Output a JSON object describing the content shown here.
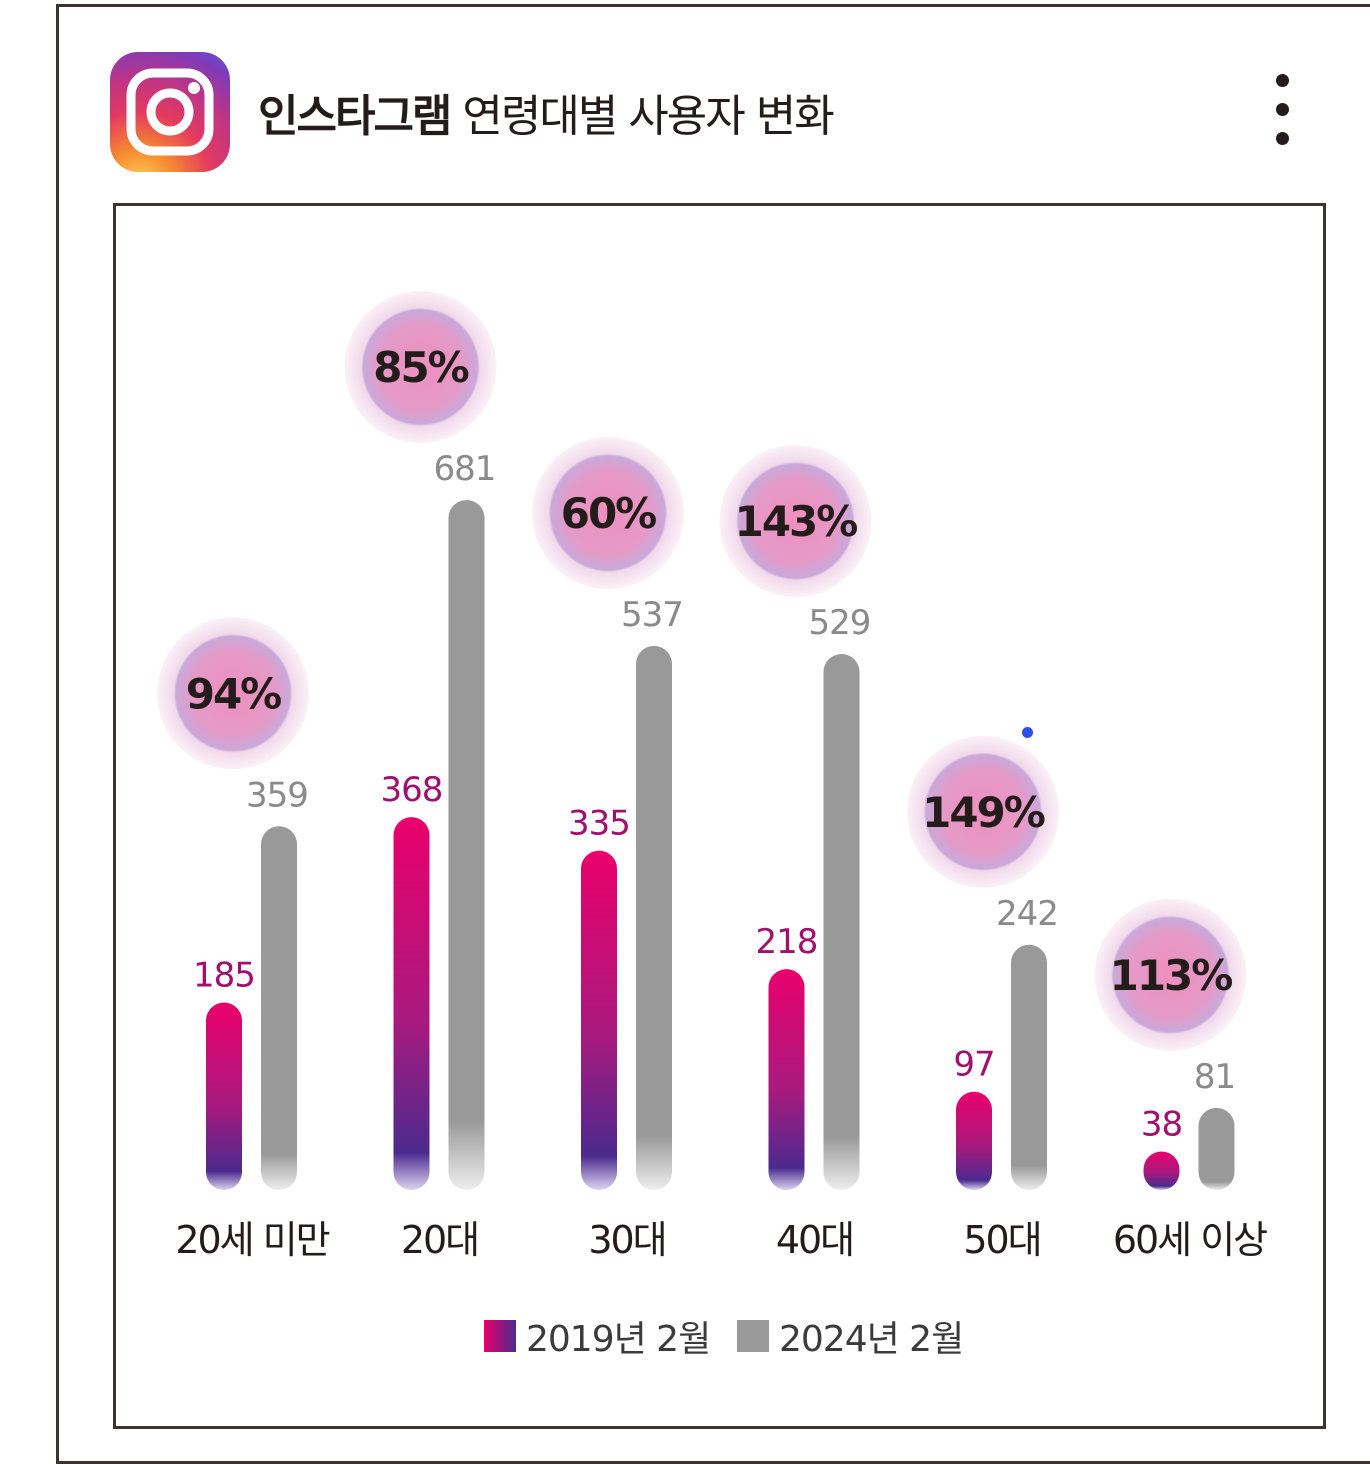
{
  "header": {
    "title_bold": "인스타그램",
    "title_rest": "연령대별 사용자 변화",
    "logo_icon": "instagram-icon",
    "menu_icon": "kebab-menu-icon"
  },
  "colors": {
    "series_2019_top": "#e6006f",
    "series_2019_bottom": "#4a2a8f",
    "series_2024": "#999999",
    "label_2019": "#a0106e",
    "label_2024": "#8a8a8a"
  },
  "chart_data": {
    "type": "bar",
    "categories": [
      "20세 미만",
      "20대",
      "30대",
      "40대",
      "50대",
      "60세 이상"
    ],
    "series": [
      {
        "name": "2019년 2월",
        "values": [
          185,
          368,
          335,
          218,
          97,
          38
        ]
      },
      {
        "name": "2024년 2월",
        "values": [
          359,
          681,
          537,
          529,
          242,
          81
        ]
      }
    ],
    "growth_labels": [
      "94%",
      "85%",
      "60%",
      "143%",
      "149%",
      "113%"
    ],
    "title": "인스타그램 연령대별 사용자 변화",
    "xlabel": "",
    "ylabel": "",
    "ylim": [
      0,
      681
    ],
    "grid": false,
    "legend_position": "bottom"
  }
}
